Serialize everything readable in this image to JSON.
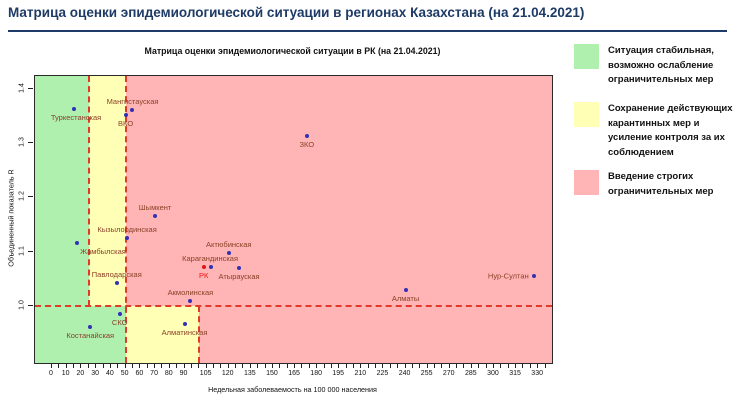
{
  "header": {
    "title": "Матрица оценки эпидемиологической ситуации в регионах Казахстана (на 21.04.2021)"
  },
  "chart_data": {
    "type": "scatter",
    "title": "Матрица оценки эпидемиологической ситуации в РК (на 21.04.2021)",
    "xlabel": "Недельная заболеваемость на 100 000 населения",
    "ylabel": "Объединенный показатель R",
    "xlim": [
      -11.5,
      339.4
    ],
    "ylim": [
      0.895,
      1.423
    ],
    "grid": false,
    "x_axis": {
      "tick_labels": [
        "0",
        "10",
        "20",
        "30",
        "40",
        "50",
        "60",
        "70",
        "80",
        "90",
        "105",
        "120",
        "135",
        "150",
        "165",
        "180",
        "195",
        "210",
        "225",
        "240",
        "255",
        "270",
        "285",
        "300",
        "315",
        "330"
      ],
      "tick_values": [
        0,
        10,
        20,
        30,
        40,
        50,
        60,
        70,
        80,
        90,
        105,
        120,
        135,
        150,
        165,
        180,
        195,
        210,
        225,
        240,
        255,
        270,
        285,
        300,
        315,
        330
      ],
      "minor_tick_step": 5,
      "minor_tick_max": 335
    },
    "y_axis": {
      "tick_labels": [
        "1.0",
        "1.1",
        "1.2",
        "1.3",
        "1.4"
      ],
      "tick_values": [
        1.0,
        1.1,
        1.2,
        1.3,
        1.4
      ]
    },
    "threshold_r": 1.0,
    "zones": {
      "above_threshold": [
        {
          "level": "green",
          "x_min": null,
          "x_max": 25
        },
        {
          "level": "yellow",
          "x_min": 25,
          "x_max": 50
        },
        {
          "level": "pink",
          "x_min": 50,
          "x_max": null
        }
      ],
      "below_threshold": [
        {
          "level": "green",
          "x_min": null,
          "x_max": 50
        },
        {
          "level": "yellow",
          "x_min": 50,
          "x_max": 100
        },
        {
          "level": "pink",
          "x_min": 100,
          "x_max": null
        }
      ]
    },
    "points": [
      {
        "name": "Туркестанская",
        "x": 15,
        "r": 1.363,
        "label_pos": "below",
        "dx": 2,
        "highlight": false
      },
      {
        "name": "Мангистауская",
        "x": 54,
        "r": 1.36,
        "label_pos": "above",
        "dx": 1,
        "highlight": false
      },
      {
        "name": "ВКО",
        "x": 50,
        "r": 1.351,
        "label_pos": "below",
        "dx": 0,
        "highlight": false
      },
      {
        "name": "ЗКО",
        "x": 173,
        "r": 1.312,
        "label_pos": "below",
        "dx": 0,
        "highlight": false
      },
      {
        "name": "Шымкент",
        "x": 70,
        "r": 1.165,
        "label_pos": "above",
        "dx": 0,
        "highlight": false
      },
      {
        "name": "Кызылординская",
        "x": 51,
        "r": 1.125,
        "label_pos": "above",
        "dx": 0,
        "highlight": false
      },
      {
        "name": "Жамбылская",
        "x": 17,
        "r": 1.116,
        "label_pos": "below",
        "dx": 26,
        "highlight": false
      },
      {
        "name": "Актюбинская",
        "x": 120,
        "r": 1.097,
        "label_pos": "above",
        "dx": 0,
        "highlight": false
      },
      {
        "name": "Карагандинская",
        "x": 108,
        "r": 1.071,
        "label_pos": "above",
        "dx": -1,
        "highlight": false
      },
      {
        "name": "РК",
        "x": 103,
        "r": 1.072,
        "label_pos": "below",
        "dx": 0,
        "highlight": true
      },
      {
        "name": "Атырауская",
        "x": 127,
        "r": 1.069,
        "label_pos": "below",
        "dx": 0,
        "highlight": false
      },
      {
        "name": "Павлодарская",
        "x": 44,
        "r": 1.042,
        "label_pos": "above",
        "dx": 0,
        "highlight": false
      },
      {
        "name": "Акмолинская",
        "x": 94,
        "r": 1.009,
        "label_pos": "above",
        "dx": 0,
        "highlight": false
      },
      {
        "name": "Алматы",
        "x": 240,
        "r": 1.029,
        "label_pos": "below",
        "dx": 0,
        "highlight": false
      },
      {
        "name": "Нур-Султан",
        "x": 327,
        "r": 1.055,
        "label_pos": "left",
        "dx": 0,
        "highlight": false
      },
      {
        "name": "СКО",
        "x": 46,
        "r": 0.985,
        "label_pos": "below",
        "dx": 0,
        "highlight": false
      },
      {
        "name": "Алматинская",
        "x": 90,
        "r": 0.967,
        "label_pos": "below",
        "dx": 0,
        "highlight": false
      },
      {
        "name": "Костанайская",
        "x": 26,
        "r": 0.961,
        "label_pos": "below",
        "dx": 0,
        "highlight": false
      }
    ],
    "legend_position": "right"
  },
  "legend": {
    "items": [
      {
        "level": "green",
        "lines": [
          "Ситуация стабильная,",
          "возможно ослабление",
          "ограничительных мер"
        ]
      },
      {
        "level": "yellow",
        "lines": [
          "Сохранение действующих",
          "карантинных мер и",
          "усиление контроля за их",
          "соблюдением"
        ]
      },
      {
        "level": "pink",
        "lines": [
          "Введение строгих",
          "ограничительных мер"
        ]
      }
    ]
  },
  "colors": {
    "zone_green": "#aff0af",
    "zone_yellow": "#ffffb5",
    "zone_pink": "#ffb5b5",
    "boundary_red": "#e03a28",
    "point_blue": "#3430b4",
    "point_red": "#e01515",
    "label_brown": "#8a4127",
    "label_red": "#ee1111",
    "title_navy": "#1e3a66"
  }
}
